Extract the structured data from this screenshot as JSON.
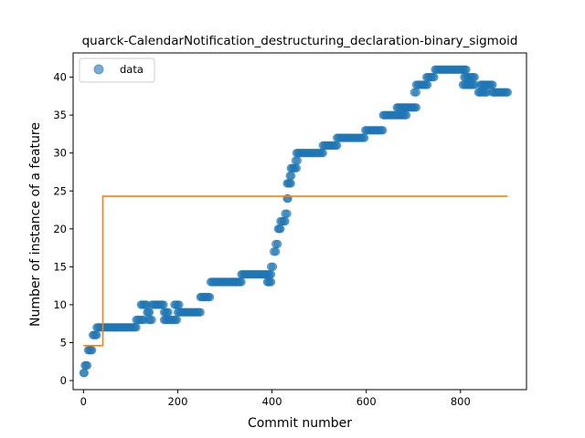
{
  "chart_data": {
    "type": "scatter",
    "title": "quarck-CalendarNotification_destructuring_declaration-binary_sigmoid",
    "xlabel": "Commit number",
    "ylabel": "Number of instance of a feature",
    "xlim": [
      -22,
      940
    ],
    "ylim": [
      -1.2,
      43.2
    ],
    "xticks": [
      0,
      200,
      400,
      600,
      800
    ],
    "yticks": [
      0,
      5,
      10,
      15,
      20,
      25,
      30,
      35,
      40
    ],
    "grid": false,
    "legend": {
      "position": "top-left",
      "entries": [
        "data"
      ]
    },
    "colors": {
      "data": "#1f77b4",
      "fit": "#ff7f0e"
    },
    "series": [
      {
        "name": "data",
        "kind": "scatter",
        "runs": [
          [
            0,
            2,
            1
          ],
          [
            3,
            8,
            2
          ],
          [
            10,
            18,
            4
          ],
          [
            20,
            28,
            6
          ],
          [
            28,
            112,
            7
          ],
          [
            112,
            128,
            8
          ],
          [
            122,
            134,
            10
          ],
          [
            135,
            140,
            9
          ],
          [
            138,
            145,
            8
          ],
          [
            145,
            170,
            10
          ],
          [
            171,
            180,
            9
          ],
          [
            171,
            198,
            8
          ],
          [
            193,
            203,
            10
          ],
          [
            200,
            248,
            9
          ],
          [
            248,
            268,
            11
          ],
          [
            270,
            335,
            13
          ],
          [
            335,
            398,
            14
          ],
          [
            390,
            398,
            13
          ],
          [
            398,
            402,
            15
          ],
          [
            404,
            408,
            17
          ],
          [
            408,
            412,
            18
          ],
          [
            413,
            418,
            20
          ],
          [
            418,
            428,
            21
          ],
          [
            428,
            432,
            22
          ],
          [
            432,
            434,
            24
          ],
          [
            432,
            440,
            26
          ],
          [
            438,
            441,
            27
          ],
          [
            440,
            452,
            28
          ],
          [
            450,
            454,
            29
          ],
          [
            452,
            508,
            30
          ],
          [
            508,
            538,
            31
          ],
          [
            538,
            596,
            32
          ],
          [
            598,
            635,
            33
          ],
          [
            636,
            685,
            35
          ],
          [
            665,
            706,
            36
          ],
          [
            702,
            706,
            38
          ],
          [
            706,
            730,
            39
          ],
          [
            728,
            744,
            40
          ],
          [
            746,
            812,
            41
          ],
          [
            808,
            830,
            40
          ],
          [
            805,
            830,
            39
          ],
          [
            838,
            856,
            38
          ],
          [
            842,
            868,
            39
          ],
          [
            868,
            900,
            38
          ]
        ]
      },
      {
        "name": "",
        "kind": "step",
        "x": [
          0,
          41,
          41,
          900
        ],
        "y": [
          4.6,
          4.6,
          24.3,
          24.3
        ]
      }
    ]
  }
}
